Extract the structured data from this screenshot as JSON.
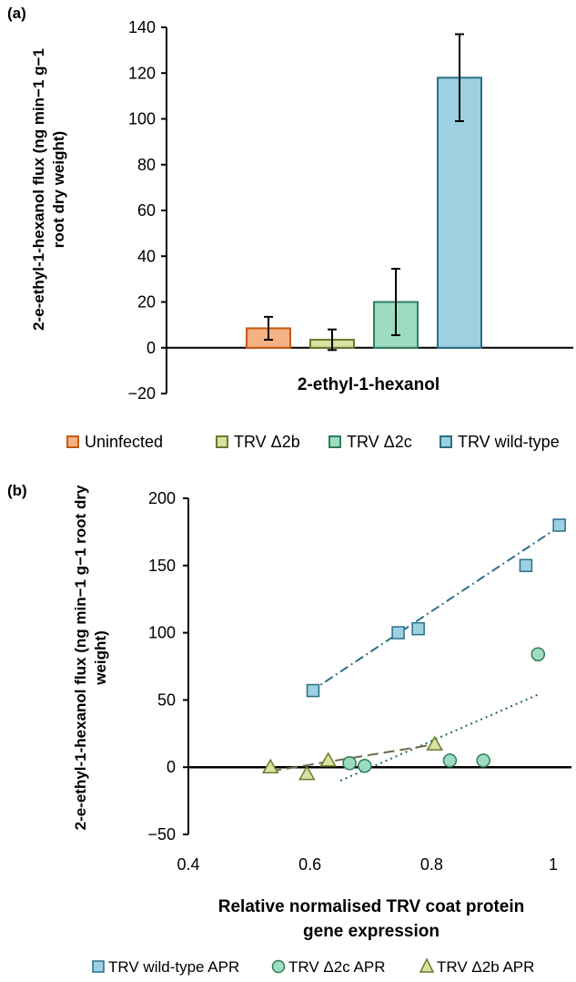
{
  "panel_a": {
    "label": "(a)",
    "ylabel_line1": "2-e-ethyl-1-hexanol flux (ng min−1 g−1",
    "ylabel_line2": "root dry weight)",
    "category_label": "2-ethyl-1-hexanol"
  },
  "panel_b": {
    "label": "(b)",
    "ylabel_line1": "2-e-ethyl-1-hexanol flux (ng min−1 g−1 root dry",
    "ylabel_line2": "weight)",
    "xlabel_line1": "Relative normalised TRV coat protein",
    "xlabel_line2": "gene expression"
  },
  "chart_data": [
    {
      "type": "bar",
      "categories": [
        "2-ethyl-1-hexanol"
      ],
      "series": [
        {
          "name": "Uninfected",
          "values": [
            8.5
          ],
          "error": [
            5
          ],
          "color": "#f4b183",
          "stroke": "#c55a11"
        },
        {
          "name": "TRV Δ2b",
          "values": [
            3.5
          ],
          "error": [
            4.5
          ],
          "color": "#d9e2a3",
          "stroke": "#6b7a2a"
        },
        {
          "name": "TRV Δ2c",
          "values": [
            20
          ],
          "error": [
            14.5
          ],
          "color": "#9ddcc0",
          "stroke": "#2e7d5b"
        },
        {
          "name": "TRV wild-type",
          "values": [
            118
          ],
          "error": [
            19
          ],
          "color": "#9dd0e0",
          "stroke": "#2a6f8a"
        }
      ],
      "ylim": [
        -20,
        140
      ],
      "yticks": [
        -20,
        0,
        20,
        40,
        60,
        80,
        100,
        120,
        140
      ],
      "ytick_labels": [
        "−20",
        "0",
        "20",
        "40",
        "60",
        "80",
        "100",
        "120",
        "140"
      ]
    },
    {
      "type": "scatter",
      "series": [
        {
          "name": "TRV wild-type APR",
          "marker": "square",
          "color": "#9dd0e0",
          "stroke": "#2a6f8a",
          "points": [
            [
              0.605,
              57
            ],
            [
              0.745,
              100
            ],
            [
              0.778,
              103
            ],
            [
              0.955,
              150
            ],
            [
              1.01,
              180
            ]
          ],
          "trend": {
            "style": "dashdot",
            "color": "#2a6f8a",
            "x": [
              0.6,
              1.0
            ],
            "y": [
              56,
              176
            ]
          }
        },
        {
          "name": "TRV Δ2c APR",
          "marker": "circle",
          "color": "#9ddcc0",
          "stroke": "#2e7d5b",
          "points": [
            [
              0.665,
              3
            ],
            [
              0.69,
              1
            ],
            [
              0.83,
              5
            ],
            [
              0.885,
              5
            ],
            [
              0.975,
              84
            ]
          ],
          "trend": {
            "style": "dotted",
            "color": "#1f6b4f",
            "x": [
              0.65,
              0.975
            ],
            "y": [
              -10,
              54
            ]
          }
        },
        {
          "name": "TRV Δ2b APR",
          "marker": "triangle",
          "color": "#d9e2a3",
          "stroke": "#6b7a2a",
          "points": [
            [
              0.535,
              0
            ],
            [
              0.595,
              -5
            ],
            [
              0.63,
              5
            ],
            [
              0.805,
              17
            ]
          ],
          "trend": {
            "style": "dashed",
            "color": "#6b6b4a",
            "x": [
              0.535,
              0.805
            ],
            "y": [
              -3,
              17
            ]
          }
        }
      ],
      "xlim": [
        0.4,
        1.0
      ],
      "xticks": [
        0.4,
        0.6,
        0.8,
        1.0
      ],
      "xtick_labels": [
        "0.4",
        "0.6",
        "0.8",
        "1"
      ],
      "ylim": [
        -50,
        200
      ],
      "yticks": [
        -50,
        0,
        50,
        100,
        150,
        200
      ],
      "ytick_labels": [
        "−50",
        "0",
        "50",
        "100",
        "150",
        "200"
      ]
    }
  ]
}
